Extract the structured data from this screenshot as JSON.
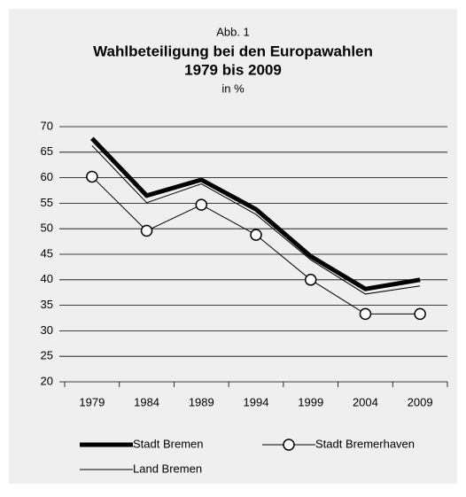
{
  "chart_data": {
    "type": "line",
    "title": "Wahlbeteiligung bei den Europawahlen",
    "title_lines": [
      "Wahlbeteiligung bei den Europawahlen",
      "1979 bis 2009"
    ],
    "supertitle": "Abb. 1",
    "subtitle": "in %",
    "categories": [
      "1979",
      "1984",
      "1989",
      "1994",
      "1999",
      "2004",
      "2009"
    ],
    "series": [
      {
        "name": "Stadt Bremen",
        "color": "#000000",
        "line_width": 5,
        "marker": "none",
        "values": [
          67.7,
          56.5,
          59.6,
          53.8,
          44.6,
          38.2,
          40.0
        ]
      },
      {
        "name": "Stadt Bremerhaven",
        "color": "#000000",
        "line_width": 1,
        "marker": "circle",
        "values": [
          60.2,
          49.6,
          54.7,
          48.8,
          40.0,
          33.3,
          33.3
        ]
      },
      {
        "name": "Land Bremen",
        "color": "#000000",
        "line_width": 1,
        "marker": "none",
        "values": [
          66.3,
          55.1,
          58.8,
          52.8,
          43.9,
          37.2,
          38.8
        ]
      }
    ],
    "ylim": [
      20,
      70
    ],
    "yticks": [
      20,
      25,
      30,
      35,
      40,
      45,
      50,
      55,
      60,
      65,
      70
    ],
    "grid": true,
    "legend": "bottom"
  }
}
